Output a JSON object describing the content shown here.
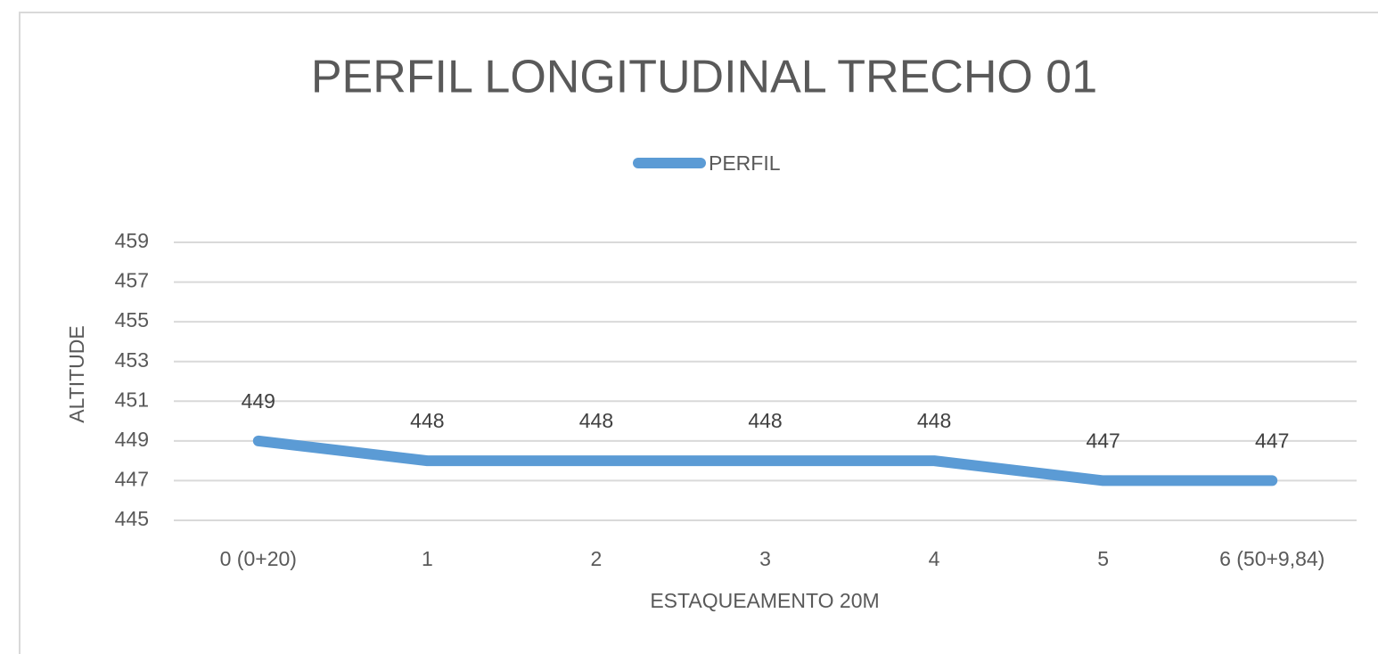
{
  "chart_data": {
    "type": "line",
    "title": "PERFIL LONGITUDINAL TRECHO 01",
    "x_label": "ESTAQUEAMENTO 20M",
    "y_label": "ALTITUDE",
    "categories": [
      "0 (0+20)",
      "1",
      "2",
      "3",
      "4",
      "5",
      "6 (50+9,84)"
    ],
    "series": [
      {
        "name": "PERFIL",
        "color": "#5b9bd5",
        "values": [
          449,
          448,
          448,
          448,
          448,
          447,
          447
        ]
      }
    ],
    "ylim": [
      445,
      459
    ],
    "yticks": [
      445,
      447,
      449,
      451,
      453,
      455,
      457,
      459
    ],
    "grid": true,
    "legend": "top",
    "data_labels": true
  }
}
